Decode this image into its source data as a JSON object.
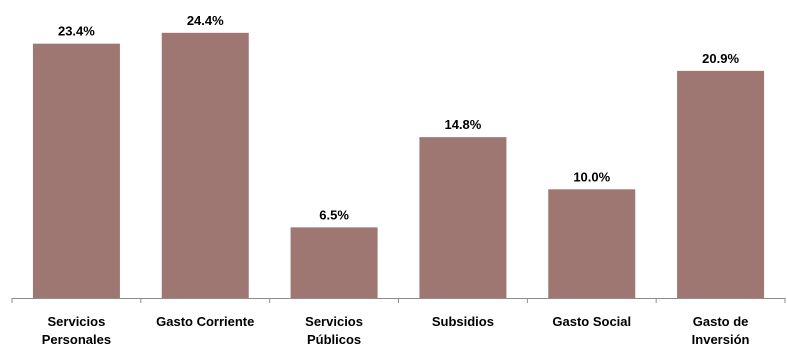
{
  "chart_data": {
    "type": "bar",
    "title": "",
    "xlabel": "",
    "ylabel": "",
    "unit": "%",
    "ylim": [
      0,
      26.5
    ],
    "grid": false,
    "legend": "none",
    "bar_color": "#9E7773",
    "axis_color": "#8C8C8C",
    "categories": [
      [
        "Servicios",
        "Personales"
      ],
      [
        "Gasto Corriente"
      ],
      [
        "Servicios",
        "Públicos"
      ],
      [
        "Subsidios"
      ],
      [
        "Gasto Social"
      ],
      [
        "Gasto de",
        "Inversión"
      ]
    ],
    "values": [
      23.4,
      24.4,
      6.5,
      14.8,
      10.0,
      20.9
    ],
    "value_labels": [
      "23.4%",
      "24.4%",
      "6.5%",
      "14.8%",
      "10.0%",
      "20.9%"
    ]
  }
}
